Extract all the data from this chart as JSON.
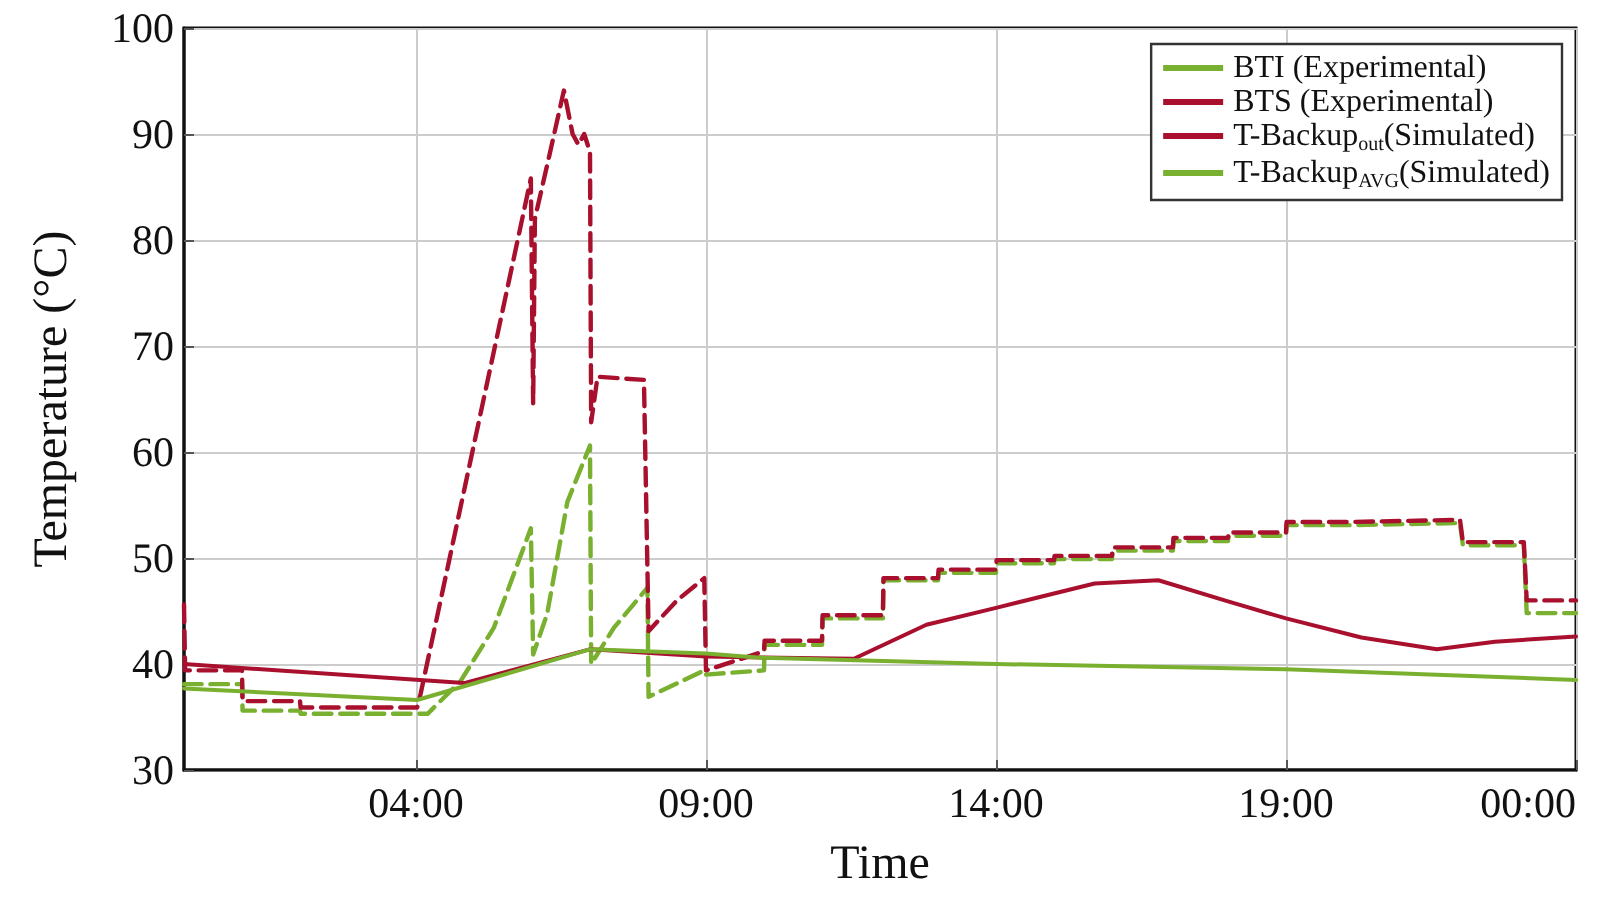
{
  "chart_data": {
    "type": "line",
    "xlabel": "Time",
    "ylabel": "Temperature (°C)",
    "xlim": [
      0,
      24
    ],
    "xticks": [
      {
        "value": 4,
        "label": "04:00"
      },
      {
        "value": 9,
        "label": "09:00"
      },
      {
        "value": 14,
        "label": "14:00"
      },
      {
        "value": 19,
        "label": "19:00"
      },
      {
        "value": 24,
        "label": "00:00"
      }
    ],
    "ylim": [
      30,
      100
    ],
    "yticks": [
      30,
      40,
      50,
      60,
      70,
      80,
      90,
      100
    ],
    "grid": true,
    "legend": "top right",
    "marker": "none",
    "series": [
      {
        "name": "BTI (Experimental)",
        "color": "#7ab030",
        "line_style": "dashed",
        "x": [
          0,
          1.0,
          1.01,
          2.0,
          2.01,
          4.2,
          4.77,
          5.34,
          5.98,
          6.02,
          6.26,
          6.61,
          7.0,
          7.02,
          7.41,
          7.99,
          8.01,
          8.97,
          9.0,
          10.0,
          10.01,
          11.0,
          11.01,
          12.05,
          12.06,
          13.0,
          13.01,
          14.0,
          14.01,
          15.0,
          15.01,
          16.0,
          16.01,
          17.05,
          17.06,
          18.0,
          18.01,
          19.0,
          19.01,
          20.1,
          22.0,
          22.05,
          23.1,
          23.15,
          24
        ],
        "values": [
          38.1,
          38.1,
          35.6,
          35.6,
          35.3,
          35.3,
          38.4,
          43.4,
          52.8,
          40.9,
          44.7,
          55.3,
          60.6,
          40.0,
          43.4,
          47.2,
          36.9,
          39.4,
          39.0,
          39.4,
          41.8,
          41.8,
          44.3,
          44.3,
          47.9,
          47.9,
          48.6,
          48.6,
          49.5,
          49.5,
          49.9,
          49.9,
          50.7,
          50.7,
          51.6,
          51.6,
          52.1,
          52.1,
          53.1,
          53.1,
          53.3,
          51.2,
          51.2,
          44.8,
          44.8
        ]
      },
      {
        "name": "BTS (Experimental)",
        "color": "#a8102e",
        "line_style": "dashed",
        "x": [
          0,
          0.02,
          0.05,
          1.0,
          1.01,
          2.0,
          2.01,
          4.02,
          4.08,
          5.98,
          6.0,
          6.02,
          6.05,
          6.3,
          6.55,
          6.7,
          6.8,
          6.9,
          7.0,
          7.02,
          7.13,
          7.93,
          8.01,
          8.5,
          8.97,
          9.0,
          10.0,
          10.01,
          11.0,
          11.01,
          12.05,
          12.06,
          13.0,
          13.01,
          14.0,
          14.01,
          15.0,
          15.01,
          16.0,
          16.01,
          17.05,
          17.06,
          18.0,
          18.01,
          19.0,
          19.01,
          20.1,
          22.0,
          22.05,
          23.1,
          23.15,
          24
        ],
        "values": [
          45.6,
          39.4,
          39.4,
          39.4,
          36.5,
          36.5,
          35.9,
          35.9,
          37.2,
          85.8,
          75,
          64.6,
          82,
          88,
          94.1,
          90,
          89,
          90,
          88.3,
          62.8,
          67.1,
          66.8,
          43.1,
          46,
          48.1,
          39.4,
          41.2,
          42.2,
          42.2,
          44.6,
          44.6,
          48.1,
          48.1,
          48.9,
          48.9,
          49.8,
          49.8,
          50.2,
          50.2,
          51.0,
          51.0,
          51.9,
          51.9,
          52.4,
          52.4,
          53.4,
          53.4,
          53.6,
          51.5,
          51.5,
          46.0,
          46.0
        ]
      },
      {
        "name": "T-Backup$_{out}$(Simulated)",
        "color": "#a8102e",
        "line_style": "solid",
        "x": [
          0,
          4.83,
          7.01,
          9,
          11.55,
          12.8,
          14,
          15.7,
          16.8,
          18,
          19,
          20.3,
          21.6,
          22.6,
          24
        ],
        "values": [
          40.0,
          38.2,
          41.4,
          40.7,
          40.5,
          43.7,
          45.3,
          47.6,
          47.9,
          45.9,
          44.3,
          42.5,
          41.4,
          42.1,
          42.6
        ]
      },
      {
        "name": "T-Backup$_{AVG}$(Simulated)",
        "color": "#7ab030",
        "line_style": "solid",
        "x": [
          0,
          4.02,
          7.01,
          9,
          9.94,
          14,
          19,
          24
        ],
        "values": [
          37.7,
          36.6,
          41.4,
          41.0,
          40.6,
          40.0,
          39.5,
          38.5
        ]
      }
    ]
  }
}
